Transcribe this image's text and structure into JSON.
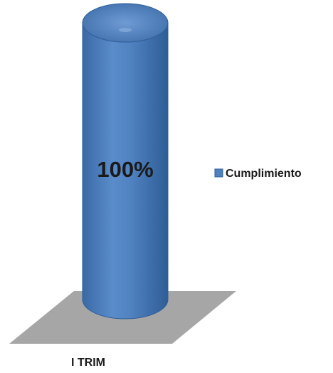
{
  "chart_data": {
    "type": "bar",
    "style": "3d-cylinder",
    "categories": [
      "I TRIM"
    ],
    "series": [
      {
        "name": "Cumplimiento",
        "values": [
          100
        ]
      }
    ],
    "data_labels": [
      "100%"
    ],
    "unit": "%",
    "ylim": [
      0,
      100
    ],
    "legend": {
      "position": "right",
      "entries": [
        "Cumplimiento"
      ]
    },
    "grid": false,
    "colors": {
      "series": "#4f81bd",
      "series_dark": "#2e5f98",
      "series_light": "#7ea6d8",
      "floor": "#a6a6a6"
    }
  }
}
